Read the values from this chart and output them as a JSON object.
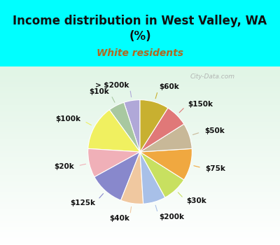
{
  "title": "Income distribution in West Valley, WA\n(%)",
  "subtitle": "White residents",
  "title_color": "#111111",
  "subtitle_color": "#b06820",
  "bg_cyan": "#00ffff",
  "chart_bg": "#e0f5ec",
  "watermark": "City-Data.com",
  "labels": [
    "> $200k",
    "$10k",
    "$100k",
    "$20k",
    "$125k",
    "$40k",
    "$200k",
    "$30k",
    "$75k",
    "$50k",
    "$150k",
    "$60k"
  ],
  "values": [
    5,
    5,
    14,
    9,
    11,
    7,
    7,
    8,
    10,
    8,
    7,
    9
  ],
  "colors": [
    "#b0a8d8",
    "#a8c8a0",
    "#f0f060",
    "#f0b0b8",
    "#8888cc",
    "#f0c8a0",
    "#a8c0e8",
    "#c8e060",
    "#f0a840",
    "#c8b898",
    "#e07878",
    "#c8b030"
  ],
  "label_fontsize": 7.5,
  "startangle": 90,
  "title_fontsize": 12,
  "subtitle_fontsize": 10
}
